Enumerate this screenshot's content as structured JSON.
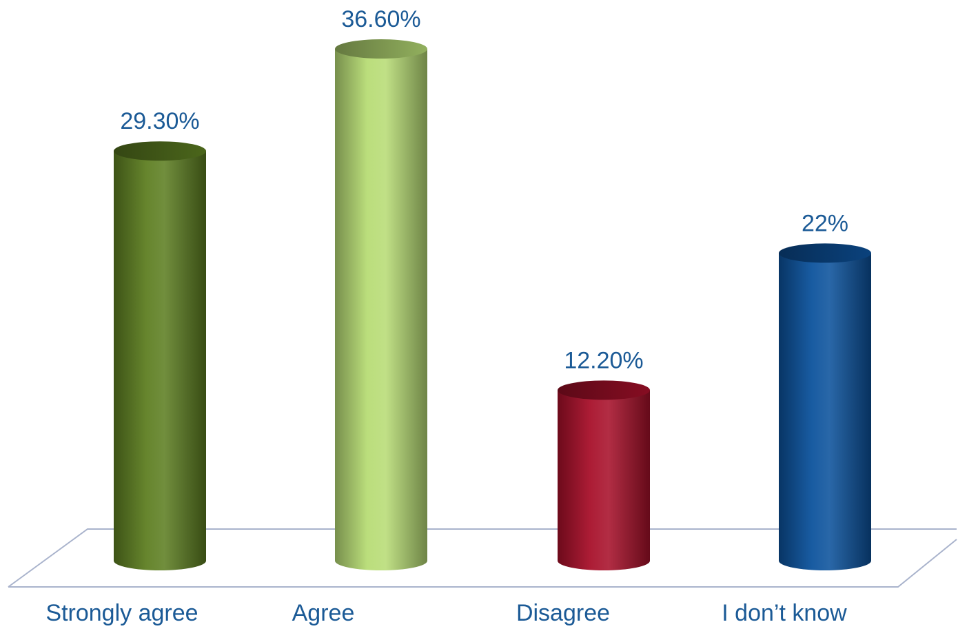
{
  "chart_data": {
    "type": "bar",
    "categories": [
      "Strongly agree",
      "Agree",
      "Disagree",
      "I don’t know"
    ],
    "values": [
      29.3,
      36.6,
      12.2,
      22
    ],
    "data_labels": [
      "29.30%",
      "36.60%",
      "12.20%",
      "22%"
    ],
    "colors": [
      "#5e7f22",
      "#b7dc75",
      "#a8102a",
      "#0c529c"
    ],
    "label_color": "#1b5a96",
    "floor_line_color": "#a9b3cc",
    "style": "3d-cylinder",
    "grid": false,
    "legend": "none"
  }
}
